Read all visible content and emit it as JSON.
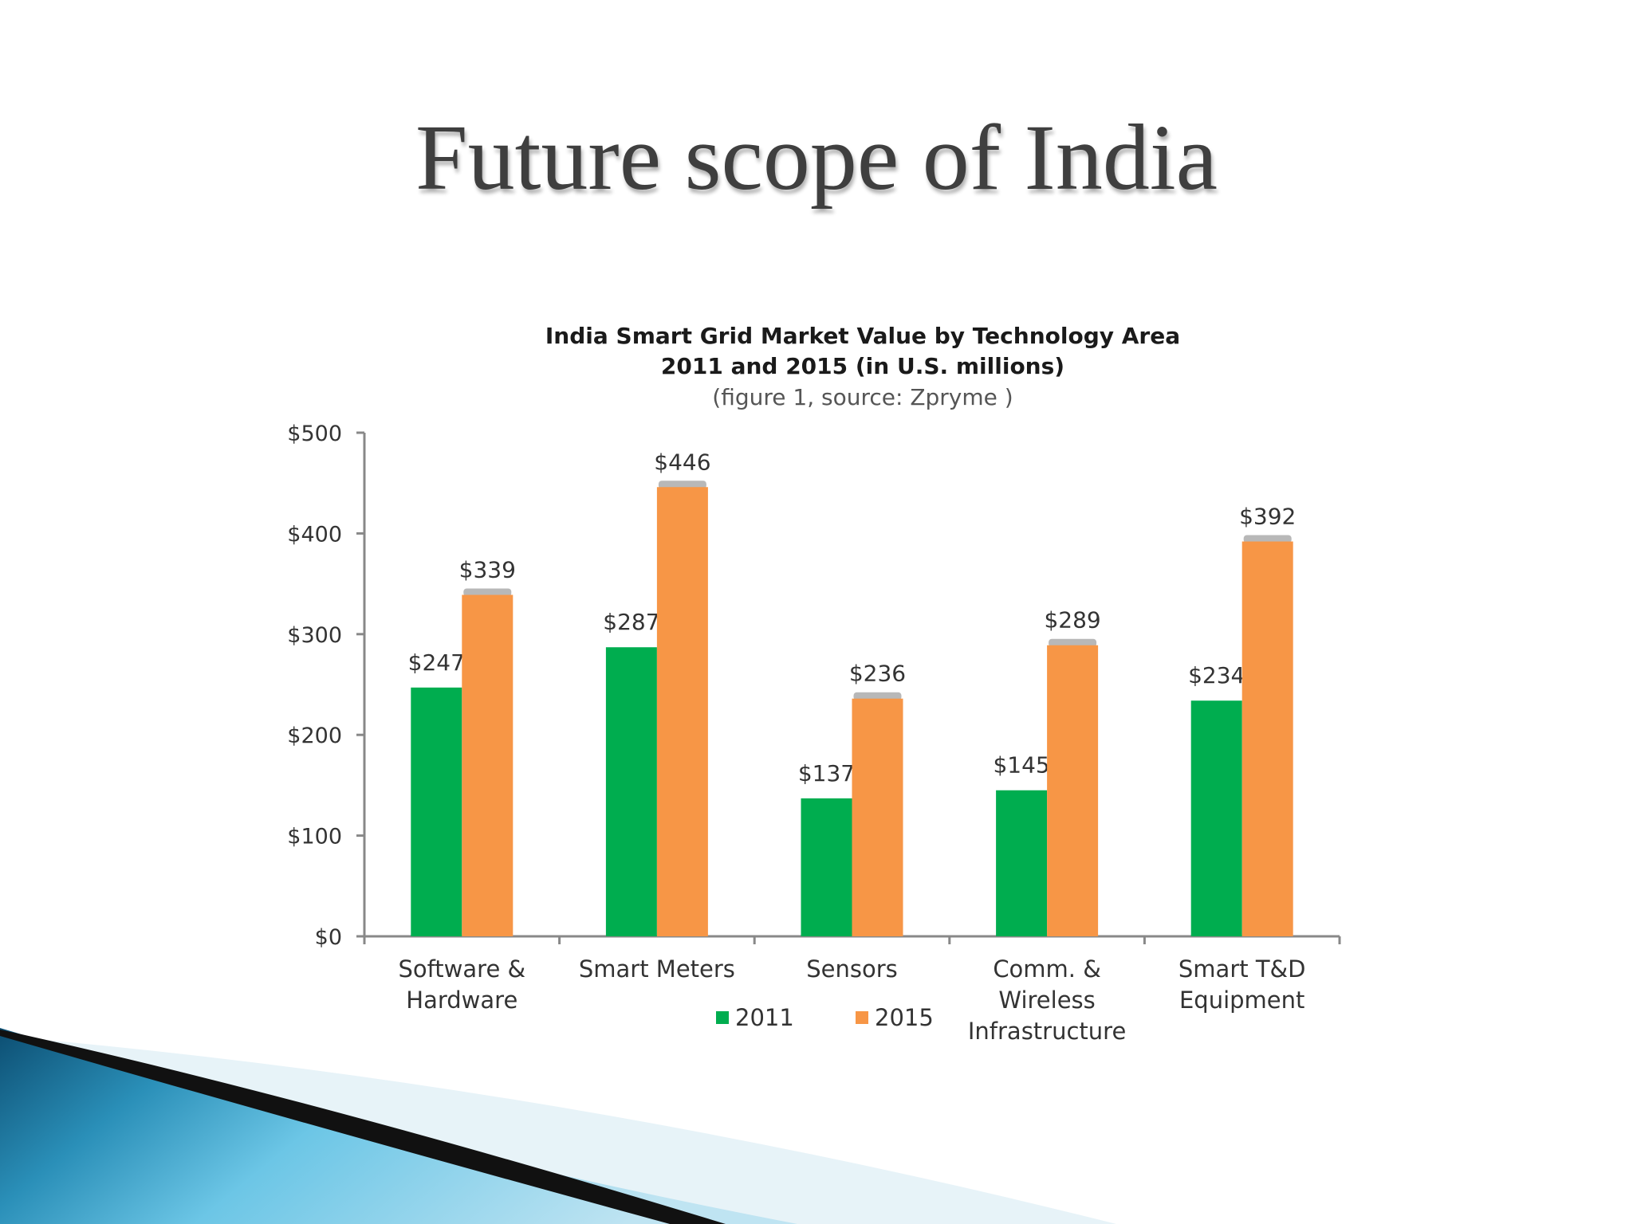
{
  "slide": {
    "title": "Future scope of India"
  },
  "colors": {
    "series_2011": "#00ad4f",
    "series_2015": "#f79646",
    "axis": "#888888",
    "decor_dark": "#0e4f73",
    "decor_light": "#5fbde0"
  },
  "chart_data": {
    "type": "bar",
    "title_lines": [
      "India Smart Grid Market Value by Technology Area",
      "2011 and 2015 (in U.S. millions)"
    ],
    "source": "(figure 1, source: Zpryme )",
    "categories": [
      [
        "Software &",
        "Hardware"
      ],
      [
        "Smart Meters"
      ],
      [
        "Sensors"
      ],
      [
        "Comm. &",
        "Wireless",
        "Infrastructure"
      ],
      [
        "Smart T&D",
        "Equipment"
      ]
    ],
    "series": [
      {
        "name": "2011",
        "values": [
          247,
          287,
          137,
          145,
          234
        ],
        "labels": [
          "$247",
          "$287",
          "$137",
          "$145",
          "$234"
        ]
      },
      {
        "name": "2015",
        "values": [
          339,
          446,
          236,
          289,
          392
        ],
        "labels": [
          "$339",
          "$446",
          "$236",
          "$289",
          "$392"
        ]
      }
    ],
    "yticks": [
      0,
      100,
      200,
      300,
      400,
      500
    ],
    "ytick_labels": [
      "$0",
      "$100",
      "$200",
      "$300",
      "$400",
      "$500"
    ],
    "ylim": [
      0,
      500
    ],
    "legend": "bottom-center",
    "grid": false
  }
}
